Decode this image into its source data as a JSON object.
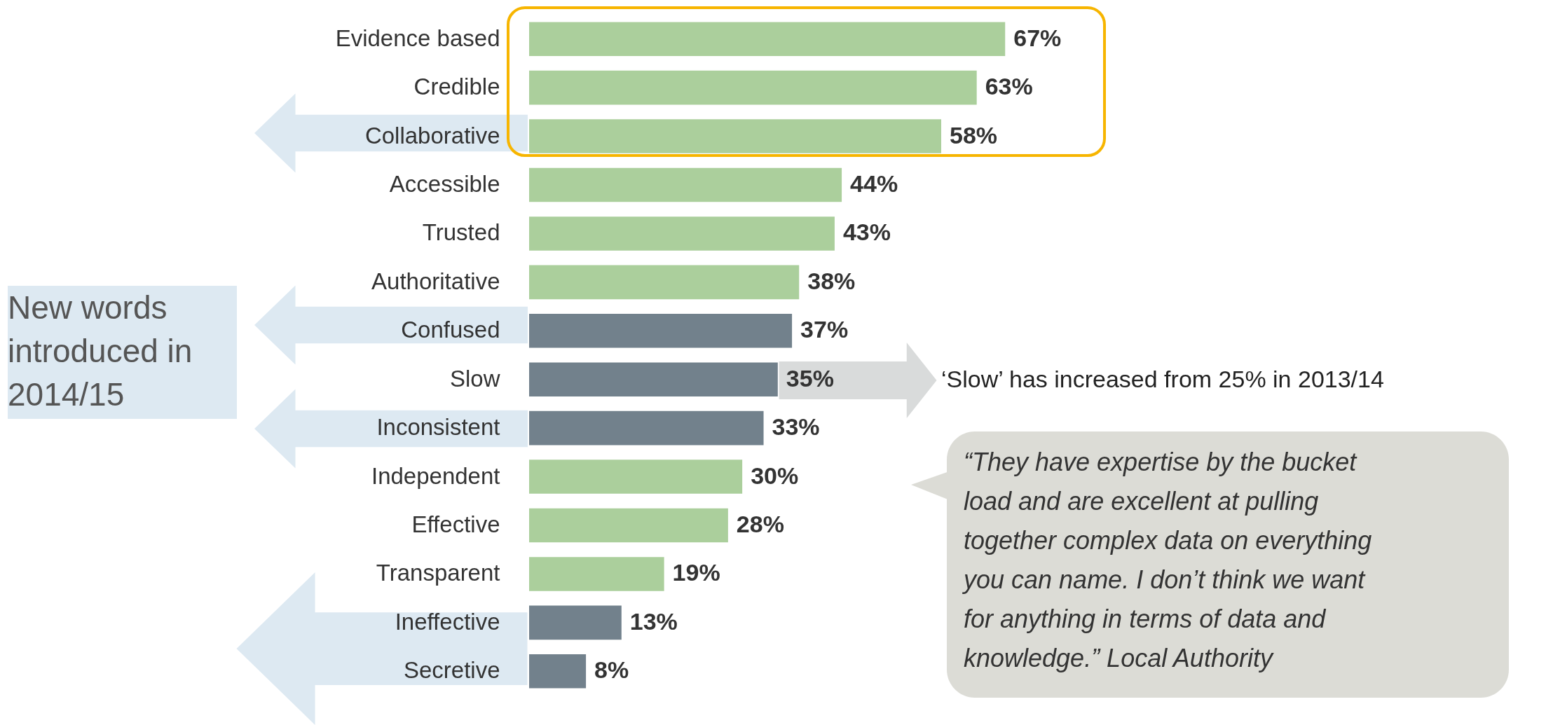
{
  "chart_data": {
    "type": "bar",
    "orientation": "horizontal",
    "categories": [
      "Evidence based",
      "Credible",
      "Collaborative",
      "Accessible",
      "Trusted",
      "Authoritative",
      "Confused",
      "Slow",
      "Inconsistent",
      "Independent",
      "Effective",
      "Transparent",
      "Ineffective",
      "Secretive"
    ],
    "values": [
      67,
      63,
      58,
      44,
      43,
      38,
      37,
      35,
      33,
      30,
      28,
      19,
      13,
      8
    ],
    "colors": [
      "#abcf9c",
      "#abcf9c",
      "#abcf9c",
      "#abcf9c",
      "#abcf9c",
      "#abcf9c",
      "#72818c",
      "#72818c",
      "#72818c",
      "#abcf9c",
      "#abcf9c",
      "#abcf9c",
      "#72818c",
      "#72818c"
    ],
    "value_labels": [
      "67%",
      "63%",
      "58%",
      "44%",
      "43%",
      "38%",
      "37%",
      "35%",
      "33%",
      "30%",
      "28%",
      "19%",
      "13%",
      "8%"
    ],
    "annotations": [
      "New words introduced in 2014/15",
      "‘Slow’ has increased from 25% in 2013/14",
      "“They have expertise by the bucket load and are excellent at pulling together complex data on everything you can name. I don’t think we want for anything in terms of data and knowledge.” Local Authority"
    ]
  }
}
